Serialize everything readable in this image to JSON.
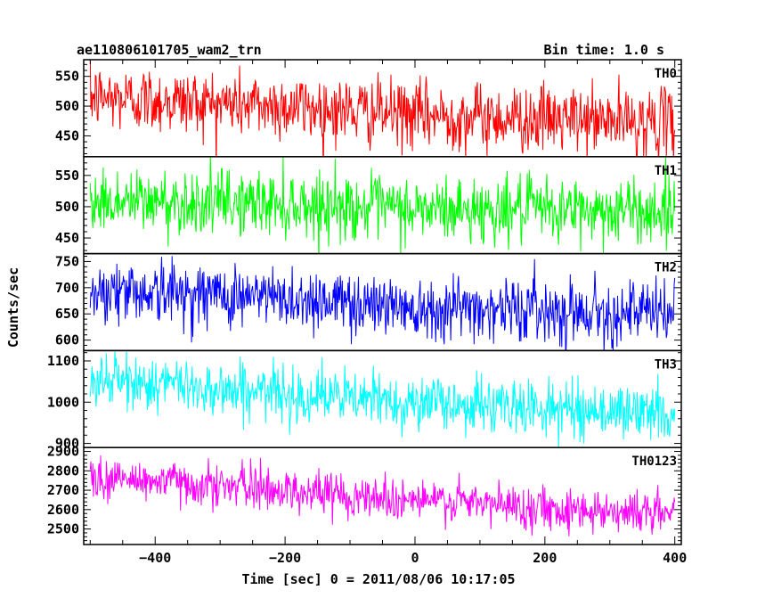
{
  "header": {
    "title": "ae110806101705_wam2_trn",
    "bin_time": "Bin time: 1.0 s"
  },
  "chart_data": {
    "type": "line",
    "title": "ae110806101705_wam2_trn",
    "xlabel": "Time [sec] 0 = 2011/08/06 10:17:05",
    "ylabel": "Counts/sec",
    "xlim": [
      -510,
      410
    ],
    "x_ticks": [
      -400,
      -200,
      0,
      200,
      400
    ],
    "x_range_data": [
      -500,
      400
    ],
    "bin_width": 1.0,
    "series": [
      {
        "name": "TH0",
        "color": "#ff0000",
        "ylim": [
          415,
          578
        ],
        "y_ticks": [
          450,
          500,
          550
        ],
        "trend": [
          [
            -500,
            515
          ],
          [
            -400,
            510
          ],
          [
            -200,
            500
          ],
          [
            0,
            485
          ],
          [
            200,
            478
          ],
          [
            400,
            472
          ]
        ],
        "noise_sd": 28
      },
      {
        "name": "TH1",
        "color": "#00ff00",
        "ylim": [
          425,
          580
        ],
        "y_ticks": [
          450,
          500,
          550
        ],
        "trend": [
          [
            -500,
            508
          ],
          [
            -400,
            508
          ],
          [
            -200,
            505
          ],
          [
            0,
            495
          ],
          [
            200,
            495
          ],
          [
            400,
            493
          ]
        ],
        "noise_sd": 26
      },
      {
        "name": "TH2",
        "color": "#0000ff",
        "ylim": [
          580,
          765
        ],
        "y_ticks": [
          600,
          650,
          700,
          750
        ],
        "trend": [
          [
            -500,
            695
          ],
          [
            -400,
            693
          ],
          [
            -200,
            680
          ],
          [
            0,
            665
          ],
          [
            200,
            658
          ],
          [
            400,
            650
          ]
        ],
        "noise_sd": 30
      },
      {
        "name": "TH3",
        "color": "#00ffff",
        "ylim": [
          890,
          1125
        ],
        "y_ticks": [
          900,
          1000,
          1100
        ],
        "trend": [
          [
            -500,
            1055
          ],
          [
            -400,
            1045
          ],
          [
            -200,
            1020
          ],
          [
            0,
            1000
          ],
          [
            200,
            985
          ],
          [
            400,
            972
          ]
        ],
        "noise_sd": 33
      },
      {
        "name": "TH0123",
        "color": "#ff00ff",
        "ylim": [
          2420,
          2920
        ],
        "y_ticks": [
          2500,
          2600,
          2700,
          2800,
          2900
        ],
        "trend": [
          [
            -500,
            2760
          ],
          [
            -400,
            2750
          ],
          [
            -200,
            2700
          ],
          [
            0,
            2650
          ],
          [
            200,
            2610
          ],
          [
            400,
            2580
          ]
        ],
        "noise_sd": 55
      }
    ]
  }
}
